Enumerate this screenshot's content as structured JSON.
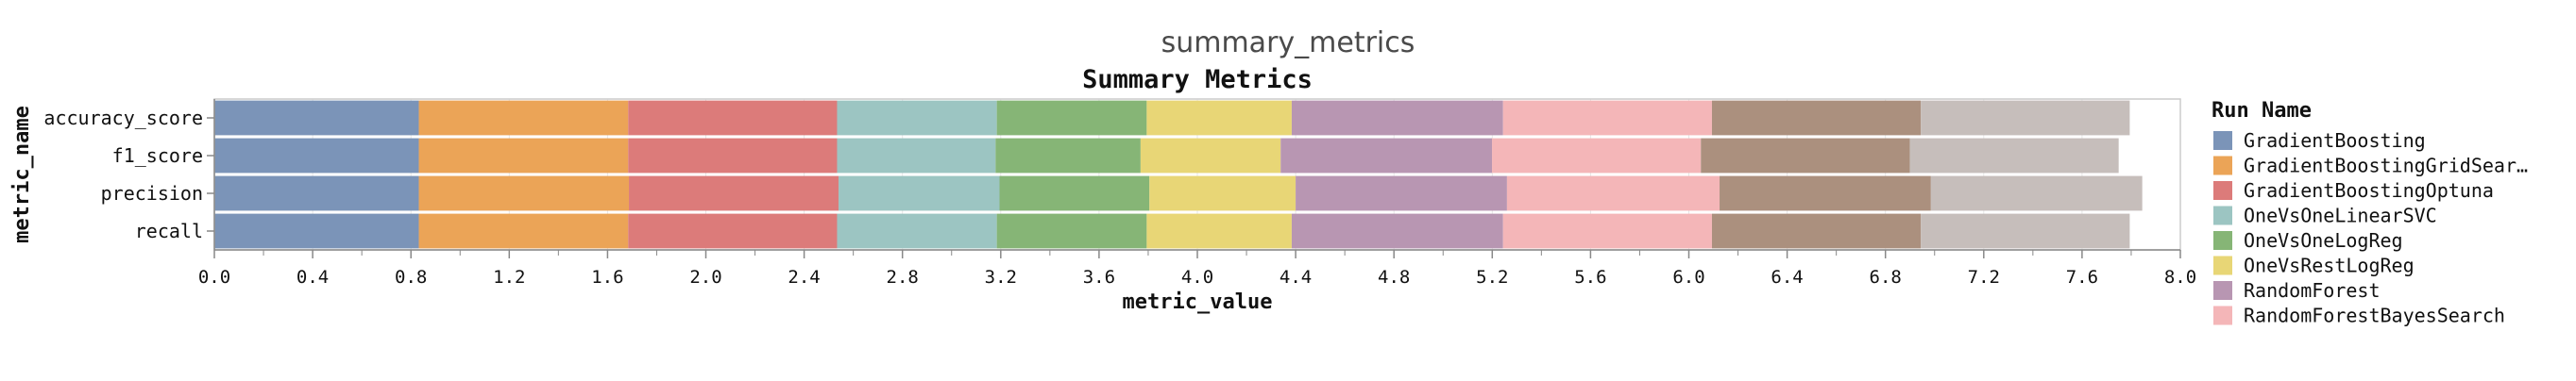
{
  "panel": {
    "title": "summary_metrics"
  },
  "chart_data": {
    "type": "bar",
    "orientation": "horizontal",
    "stacked": true,
    "title": "Summary Metrics",
    "xlabel": "metric_value",
    "ylabel": "metric_name",
    "xlim": [
      0,
      8.0
    ],
    "x_ticks": [
      "0.0",
      "0.4",
      "0.8",
      "1.2",
      "1.6",
      "2.0",
      "2.4",
      "2.8",
      "3.2",
      "3.6",
      "4.0",
      "4.4",
      "4.8",
      "5.2",
      "5.6",
      "6.0",
      "6.4",
      "6.8",
      "7.2",
      "7.6",
      "8.0"
    ],
    "categories": [
      "accuracy_score",
      "f1_score",
      "precision",
      "recall"
    ],
    "grid": true,
    "legend": {
      "title": "Run Name",
      "placement": "right"
    },
    "series": [
      {
        "name": "GradientBoosting",
        "label": "GradientBoosting",
        "color": "#7b94b8",
        "values": [
          0.832,
          0.832,
          0.832,
          0.832
        ]
      },
      {
        "name": "GradientBoostingGridSearch",
        "label": "GradientBoostingGridSear…",
        "color": "#eba457",
        "values": [
          0.852,
          0.852,
          0.855,
          0.852
        ]
      },
      {
        "name": "GradientBoostingOptuna",
        "label": "GradientBoostingOptuna",
        "color": "#dc7b7a",
        "values": [
          0.85,
          0.85,
          0.853,
          0.85
        ]
      },
      {
        "name": "OneVsOneLinearSVC",
        "label": "OneVsOneLinearSVC",
        "color": "#9cc5c2",
        "values": [
          0.65,
          0.645,
          0.655,
          0.65
        ]
      },
      {
        "name": "OneVsOneLogReg",
        "label": "OneVsOneLogReg",
        "color": "#86b576",
        "values": [
          0.61,
          0.59,
          0.61,
          0.61
        ]
      },
      {
        "name": "OneVsRestLogReg",
        "label": "OneVsRestLogReg",
        "color": "#e8d676",
        "values": [
          0.59,
          0.57,
          0.595,
          0.59
        ]
      },
      {
        "name": "RandomForest",
        "label": "RandomForest",
        "color": "#b896b2",
        "values": [
          0.86,
          0.86,
          0.86,
          0.86
        ]
      },
      {
        "name": "RandomForestBayesSearch",
        "label": "RandomForestBayesSearch",
        "color": "#f4b6b8",
        "values": [
          0.85,
          0.85,
          0.865,
          0.85
        ]
      },
      {
        "name": "",
        "label": "",
        "color": "#ab907e",
        "values": [
          0.85,
          0.85,
          0.86,
          0.85
        ]
      },
      {
        "name": "",
        "label": "",
        "color": "#c6bebb",
        "values": [
          0.85,
          0.85,
          0.86,
          0.85
        ]
      }
    ]
  }
}
